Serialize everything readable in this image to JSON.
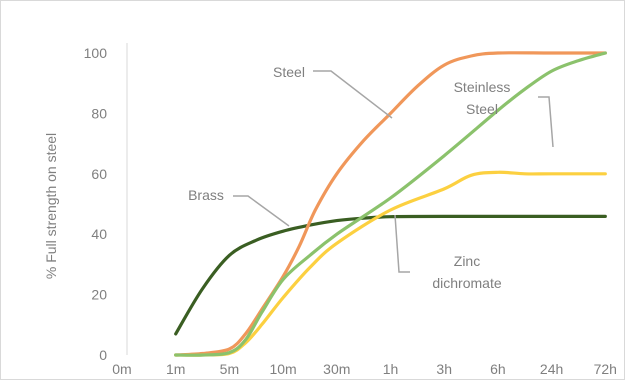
{
  "chart_data": {
    "type": "line",
    "ylabel": "% Full strength on steel",
    "xlabel": "",
    "ylim": [
      0,
      100
    ],
    "yticks": [
      0,
      20,
      40,
      60,
      80,
      100
    ],
    "categories": [
      "0m",
      "1m",
      "5m",
      "10m",
      "30m",
      "1h",
      "3h",
      "6h",
      "24h",
      "72h"
    ],
    "grid": false,
    "legend": "none (inline annotations)",
    "series": [
      {
        "name": "Brass",
        "color": "#3a5e22",
        "points": [
          [
            1,
            7
          ],
          [
            1.5,
            22
          ],
          [
            2,
            33
          ],
          [
            2.5,
            38
          ],
          [
            3,
            41
          ],
          [
            3.5,
            43
          ],
          [
            4,
            44.5
          ],
          [
            4.5,
            45.3
          ],
          [
            5,
            45.8
          ],
          [
            6,
            45.9
          ],
          [
            7,
            45.9
          ],
          [
            8,
            45.9
          ],
          [
            9,
            45.9
          ]
        ]
      },
      {
        "name": "Steel",
        "color": "#f0975a",
        "points": [
          [
            1,
            0
          ],
          [
            1.5,
            0.5
          ],
          [
            2,
            2
          ],
          [
            2.3,
            7
          ],
          [
            2.6,
            15
          ],
          [
            3,
            26
          ],
          [
            3.3,
            36
          ],
          [
            3.6,
            48
          ],
          [
            4,
            60
          ],
          [
            4.5,
            71
          ],
          [
            5,
            80
          ],
          [
            5.5,
            89
          ],
          [
            6,
            96
          ],
          [
            6.5,
            99
          ],
          [
            7,
            100
          ],
          [
            8,
            100
          ],
          [
            9,
            100
          ]
        ]
      },
      {
        "name": "Steinless Steel",
        "color": "#8bc26c",
        "points": [
          [
            1,
            0
          ],
          [
            1.5,
            0
          ],
          [
            2,
            0.8
          ],
          [
            2.3,
            5
          ],
          [
            2.6,
            14
          ],
          [
            3,
            25
          ],
          [
            3.5,
            33
          ],
          [
            4,
            40
          ],
          [
            5,
            52
          ],
          [
            6,
            66
          ],
          [
            7,
            81
          ],
          [
            7.5,
            88
          ],
          [
            8,
            94
          ],
          [
            8.5,
            97.5
          ],
          [
            9,
            100
          ]
        ]
      },
      {
        "name": "Zinc dichromate",
        "color": "#fcd040",
        "points": [
          [
            1,
            0
          ],
          [
            1.5,
            0
          ],
          [
            2,
            0.5
          ],
          [
            2.3,
            4
          ],
          [
            2.6,
            10
          ],
          [
            3,
            19
          ],
          [
            3.5,
            29
          ],
          [
            4,
            37
          ],
          [
            5,
            48
          ],
          [
            6,
            55
          ],
          [
            6.5,
            59.5
          ],
          [
            7,
            60.5
          ],
          [
            7.5,
            60
          ],
          [
            8,
            60
          ],
          [
            9,
            60
          ]
        ]
      }
    ],
    "annotations": [
      {
        "lines": [
          "Steel"
        ],
        "series": "Steel"
      },
      {
        "lines": [
          "Steinless",
          "Steel"
        ],
        "series": "Steinless Steel"
      },
      {
        "lines": [
          "Brass"
        ],
        "series": "Brass"
      },
      {
        "lines": [
          "Zinc",
          "dichromate"
        ],
        "series": "Zinc dichromate"
      }
    ]
  }
}
